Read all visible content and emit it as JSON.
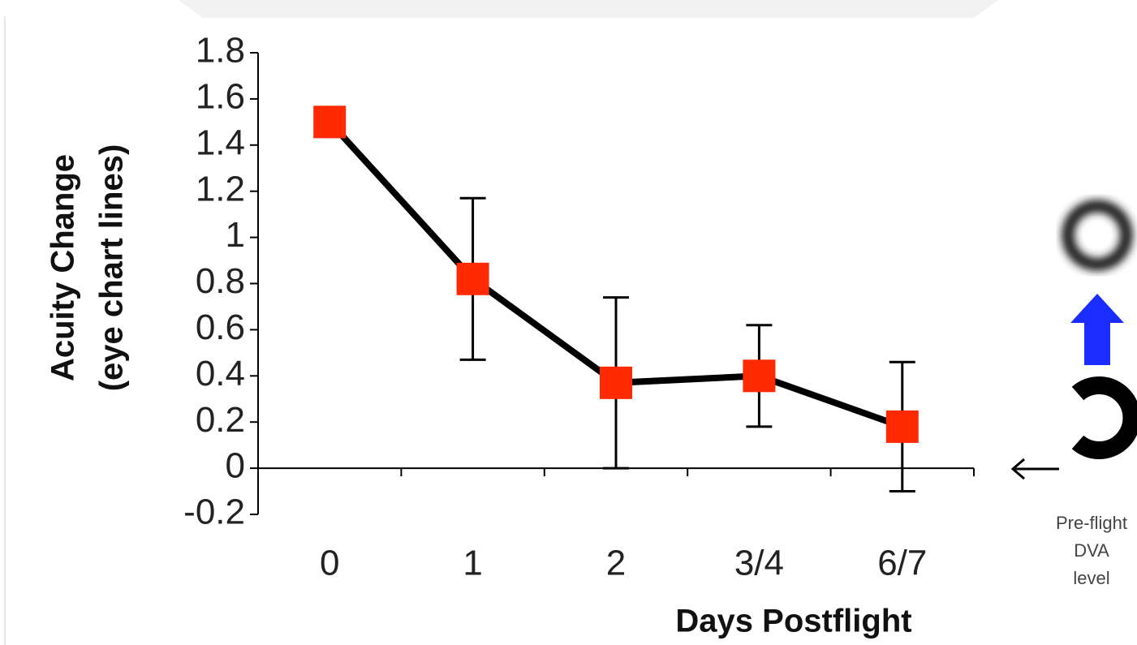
{
  "chart_data": {
    "type": "line",
    "categories": [
      "0",
      "1",
      "2",
      "3/4",
      "6/7"
    ],
    "series": [
      {
        "name": "Acuity Change",
        "color": "#000000",
        "marker_color": "#ff2a00",
        "values": [
          1.5,
          0.82,
          0.37,
          0.4,
          0.18
        ],
        "errors": [
          null,
          0.35,
          0.37,
          0.22,
          0.28
        ]
      }
    ],
    "ylim": [
      -0.2,
      1.8
    ],
    "yticks": [
      -0.2,
      0,
      0.2,
      0.4,
      0.6,
      0.8,
      1,
      1.2,
      1.4,
      1.6,
      1.8
    ],
    "ylabel": [
      "Acuity Change",
      "(eye chart lines)"
    ],
    "xlabel": "Days Postflight",
    "annotation": [
      "Pre-flight",
      "DVA",
      "level"
    ]
  }
}
